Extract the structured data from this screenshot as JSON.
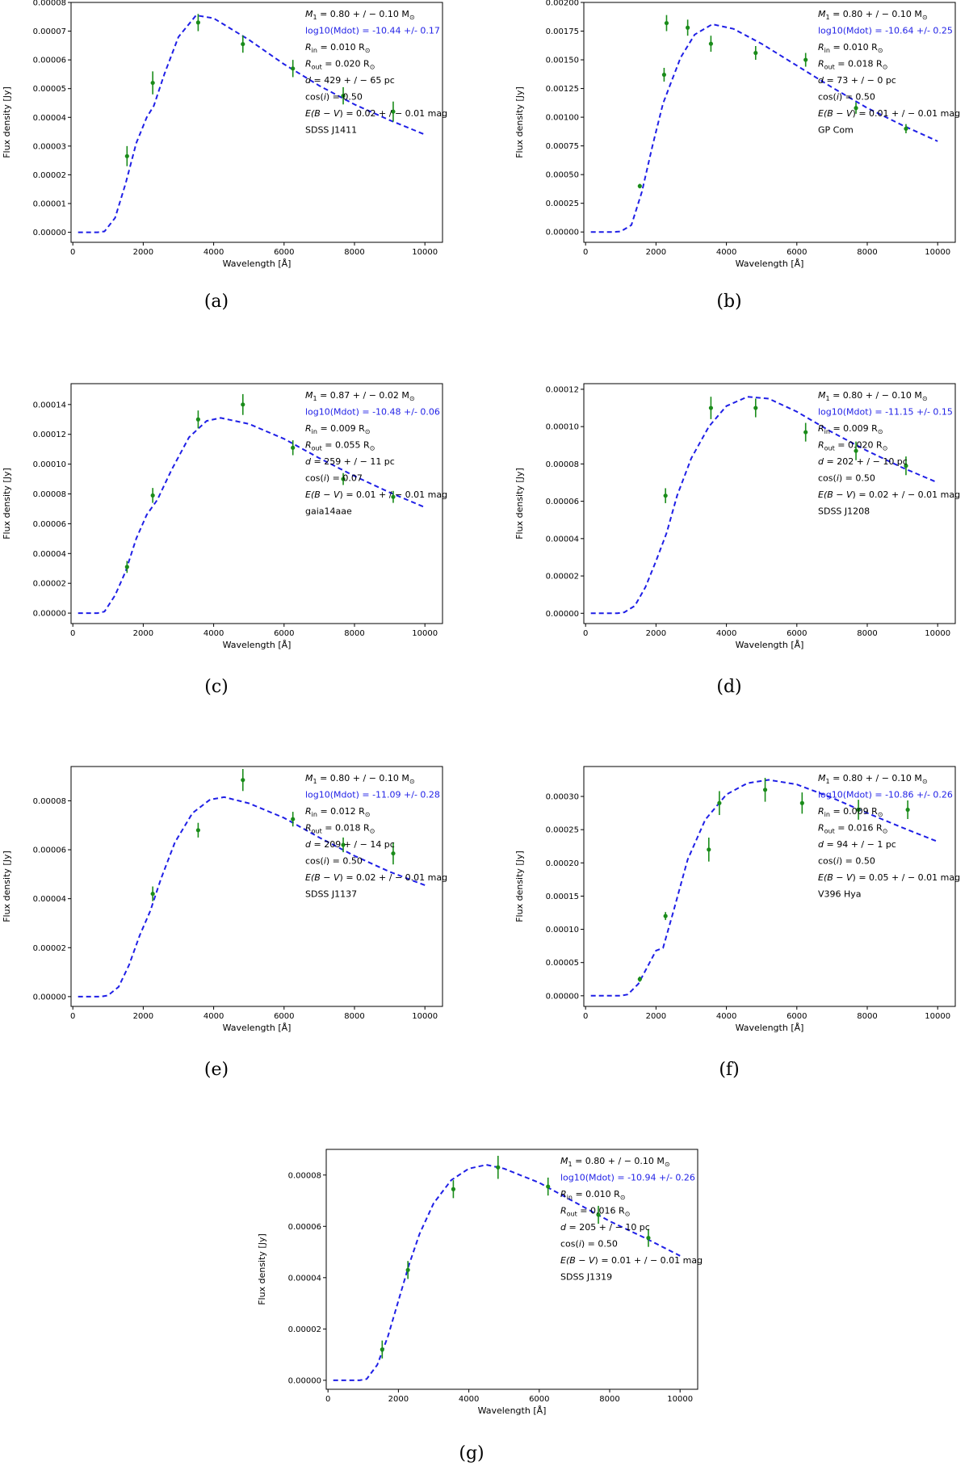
{
  "chart_data": [
    {
      "type": "scatter",
      "caption": "(a)",
      "xlabel": "Wavelength [Å]",
      "ylabel": "Flux density [Jy]",
      "xlim": [
        -50,
        10500
      ],
      "ylim": [
        -3.5e-06,
        8e-05
      ],
      "xticks": [
        0,
        2000,
        4000,
        6000,
        8000,
        10000
      ],
      "xtick_labels": [
        "0",
        "2000",
        "4000",
        "6000",
        "8000",
        "10000"
      ],
      "yticks": [
        0,
        1e-05,
        2e-05,
        3e-05,
        4e-05,
        5e-05,
        6e-05,
        7e-05,
        8e-05
      ],
      "ytick_labels": [
        "0.00000",
        "0.00001",
        "0.00002",
        "0.00003",
        "0.00004",
        "0.00005",
        "0.00006",
        "0.00007",
        "0.00008"
      ],
      "curve": {
        "x": [
          150,
          700,
          900,
          1200,
          1500,
          1800,
          2100,
          2300,
          2600,
          3000,
          3500,
          4000,
          5000,
          6000,
          7000,
          8000,
          9000,
          10000
        ],
        "y": [
          0,
          0,
          3e-07,
          5e-06,
          1.7e-05,
          3.1e-05,
          4e-05,
          4.4e-05,
          5.5e-05,
          6.8e-05,
          7.55e-05,
          7.45e-05,
          6.7e-05,
          5.85e-05,
          5.1e-05,
          4.45e-05,
          3.9e-05,
          3.4e-05
        ]
      },
      "points": [
        {
          "x": 1540,
          "y": 2.65e-05,
          "err": 3.5e-06
        },
        {
          "x": 2270,
          "y": 5.2e-05,
          "err": 4e-06
        },
        {
          "x": 3560,
          "y": 7.3e-05,
          "err": 3e-06
        },
        {
          "x": 4830,
          "y": 6.55e-05,
          "err": 3e-06
        },
        {
          "x": 6250,
          "y": 5.7e-05,
          "err": 3e-06
        },
        {
          "x": 7680,
          "y": 4.75e-05,
          "err": 3e-06
        },
        {
          "x": 9100,
          "y": 4.2e-05,
          "err": 3.5e-06
        }
      ],
      "annotations": {
        "m1": "0.80 + / − 0.10",
        "mdot": "log10(Mdot) = -10.44 +/- 0.17",
        "rin": "0.010",
        "rout": "0.020",
        "d": "429 + / − 65",
        "cosi": "0.50",
        "ebv": "0.02 + / − 0.01",
        "name": "SDSS J1411"
      }
    },
    {
      "type": "scatter",
      "caption": "(b)",
      "xlabel": "Wavelength [Å]",
      "ylabel": "Flux density [Jy]",
      "xlim": [
        -50,
        10500
      ],
      "ylim": [
        -9e-05,
        0.002
      ],
      "xticks": [
        0,
        2000,
        4000,
        6000,
        8000,
        10000
      ],
      "xtick_labels": [
        "0",
        "2000",
        "4000",
        "6000",
        "8000",
        "10000"
      ],
      "yticks": [
        0,
        0.00025,
        0.0005,
        0.00075,
        0.001,
        0.00125,
        0.0015,
        0.00175,
        0.002
      ],
      "ytick_labels": [
        "0.00000",
        "0.00025",
        "0.00050",
        "0.00075",
        "0.00100",
        "0.00125",
        "0.00150",
        "0.00175",
        "0.00200"
      ],
      "curve": {
        "x": [
          150,
          800,
          1000,
          1300,
          1600,
          1900,
          2200,
          2400,
          2700,
          3100,
          3600,
          4200,
          5000,
          6000,
          7000,
          8000,
          9000,
          10000
        ],
        "y": [
          0,
          0,
          5e-06,
          6e-05,
          0.00035,
          0.00075,
          0.00112,
          0.00128,
          0.00152,
          0.00172,
          0.00181,
          0.00177,
          0.00164,
          0.00145,
          0.00126,
          0.00108,
          0.00093,
          0.00079
        ]
      },
      "points": [
        {
          "x": 1540,
          "y": 0.0004,
          "err": 2e-05
        },
        {
          "x": 2230,
          "y": 0.00137,
          "err": 6e-05
        },
        {
          "x": 2300,
          "y": 0.00182,
          "err": 7e-05
        },
        {
          "x": 2900,
          "y": 0.00178,
          "err": 7e-05
        },
        {
          "x": 3560,
          "y": 0.00164,
          "err": 7e-05
        },
        {
          "x": 4830,
          "y": 0.00156,
          "err": 6e-05
        },
        {
          "x": 6250,
          "y": 0.0015,
          "err": 6e-05
        },
        {
          "x": 7680,
          "y": 0.00108,
          "err": 5e-05
        },
        {
          "x": 9100,
          "y": 0.0009,
          "err": 4e-05
        }
      ],
      "annotations": {
        "m1": "0.80 + / − 0.10",
        "mdot": "log10(Mdot) = -10.64 +/- 0.25",
        "rin": "0.010",
        "rout": "0.018",
        "d": "73 + / − 0",
        "cosi": "0.50",
        "ebv": "0.01 + / − 0.01",
        "name": "GP Com"
      }
    },
    {
      "type": "scatter",
      "caption": "(c)",
      "xlabel": "Wavelength [Å]",
      "ylabel": "Flux density [Jy]",
      "xlim": [
        -50,
        10500
      ],
      "ylim": [
        -7e-06,
        0.000154
      ],
      "xticks": [
        0,
        2000,
        4000,
        6000,
        8000,
        10000
      ],
      "xtick_labels": [
        "0",
        "2000",
        "4000",
        "6000",
        "8000",
        "10000"
      ],
      "yticks": [
        0,
        2e-05,
        4e-05,
        6e-05,
        8e-05,
        0.0001,
        0.00012,
        0.00014
      ],
      "ytick_labels": [
        "0.00000",
        "0.00002",
        "0.00004",
        "0.00006",
        "0.00008",
        "0.00010",
        "0.00012",
        "0.00014"
      ],
      "curve": {
        "x": [
          150,
          700,
          900,
          1200,
          1500,
          1800,
          2100,
          2400,
          2800,
          3300,
          3800,
          4200,
          5000,
          6000,
          7000,
          8000,
          9000,
          10000
        ],
        "y": [
          0,
          0,
          1e-06,
          1.2e-05,
          2.8e-05,
          5e-05,
          6.6e-05,
          7.6e-05,
          9.6e-05,
          0.000118,
          0.000129,
          0.000131,
          0.000127,
          0.000117,
          0.000104,
          9.2e-05,
          8.1e-05,
          7.1e-05
        ]
      },
      "points": [
        {
          "x": 1540,
          "y": 3.1e-05,
          "err": 4e-06
        },
        {
          "x": 2270,
          "y": 7.9e-05,
          "err": 5e-06
        },
        {
          "x": 3560,
          "y": 0.00013,
          "err": 6e-06
        },
        {
          "x": 4830,
          "y": 0.00014,
          "err": 7e-06
        },
        {
          "x": 6250,
          "y": 0.000111,
          "err": 5e-06
        },
        {
          "x": 7680,
          "y": 9e-05,
          "err": 4e-06
        },
        {
          "x": 9100,
          "y": 7.8e-05,
          "err": 4e-06
        }
      ],
      "annotations": {
        "m1": "0.87 + / − 0.02",
        "mdot": "log10(Mdot) = -10.48 +/- 0.06",
        "rin": "0.009",
        "rout": "0.055",
        "d": "259 + / − 11",
        "cosi": "0.07",
        "ebv": "0.01 + / − 0.01",
        "name": "gaia14aae"
      }
    },
    {
      "type": "scatter",
      "caption": "(d)",
      "xlabel": "Wavelength [Å]",
      "ylabel": "Flux density [Jy]",
      "xlim": [
        -50,
        10500
      ],
      "ylim": [
        -5.5e-06,
        0.000123
      ],
      "xticks": [
        0,
        2000,
        4000,
        6000,
        8000,
        10000
      ],
      "xtick_labels": [
        "0",
        "2000",
        "4000",
        "6000",
        "8000",
        "10000"
      ],
      "yticks": [
        0,
        2e-05,
        4e-05,
        6e-05,
        8e-05,
        0.0001,
        0.00012
      ],
      "ytick_labels": [
        "0.00000",
        "0.00002",
        "0.00004",
        "0.00006",
        "0.00008",
        "0.00010",
        "0.00012"
      ],
      "curve": {
        "x": [
          150,
          900,
          1100,
          1400,
          1700,
          2000,
          2300,
          2600,
          3000,
          3500,
          4000,
          4600,
          5200,
          6000,
          7000,
          8000,
          9000,
          10000
        ],
        "y": [
          0,
          0,
          5e-07,
          4e-06,
          1.4e-05,
          2.8e-05,
          4.3e-05,
          6.3e-05,
          8.3e-05,
          0.0001,
          0.000111,
          0.000116,
          0.000115,
          0.000108,
          9.7e-05,
          8.7e-05,
          7.8e-05,
          7e-05
        ]
      },
      "points": [
        {
          "x": 2270,
          "y": 6.3e-05,
          "err": 4e-06
        },
        {
          "x": 3560,
          "y": 0.00011,
          "err": 6e-06
        },
        {
          "x": 4830,
          "y": 0.00011,
          "err": 5e-06
        },
        {
          "x": 6250,
          "y": 9.7e-05,
          "err": 5e-06
        },
        {
          "x": 7680,
          "y": 8.7e-05,
          "err": 5e-06
        },
        {
          "x": 9100,
          "y": 7.9e-05,
          "err": 5e-06
        }
      ],
      "annotations": {
        "m1": "0.80 + / − 0.10",
        "mdot": "log10(Mdot) = -11.15 +/- 0.15",
        "rin": "0.009",
        "rout": "0.020",
        "d": "202 + / − 10",
        "cosi": "0.50",
        "ebv": "0.02 + / − 0.01",
        "name": "SDSS J1208"
      }
    },
    {
      "type": "scatter",
      "caption": "(e)",
      "xlabel": "Wavelength [Å]",
      "ylabel": "Flux density [Jy]",
      "xlim": [
        -50,
        10500
      ],
      "ylim": [
        -4e-06,
        9.4e-05
      ],
      "xticks": [
        0,
        2000,
        4000,
        6000,
        8000,
        10000
      ],
      "xtick_labels": [
        "0",
        "2000",
        "4000",
        "6000",
        "8000",
        "10000"
      ],
      "yticks": [
        0,
        2e-05,
        4e-05,
        6e-05,
        8e-05
      ],
      "ytick_labels": [
        "0.00000",
        "0.00002",
        "0.00004",
        "0.00006",
        "0.00008"
      ],
      "curve": {
        "x": [
          150,
          800,
          1000,
          1300,
          1600,
          1900,
          2200,
          2500,
          2900,
          3400,
          3900,
          4300,
          5000,
          6000,
          7000,
          8000,
          9000,
          10000
        ],
        "y": [
          0,
          0,
          5e-07,
          4e-06,
          1.3e-05,
          2.5e-05,
          3.5e-05,
          4.8e-05,
          6.3e-05,
          7.5e-05,
          8.05e-05,
          8.15e-05,
          7.9e-05,
          7.3e-05,
          6.5e-05,
          5.75e-05,
          5.1e-05,
          4.55e-05
        ]
      },
      "points": [
        {
          "x": 2270,
          "y": 4.2e-05,
          "err": 3e-06
        },
        {
          "x": 3560,
          "y": 6.8e-05,
          "err": 3e-06
        },
        {
          "x": 4830,
          "y": 8.85e-05,
          "err": 4.5e-06
        },
        {
          "x": 6250,
          "y": 7.25e-05,
          "err": 3e-06
        },
        {
          "x": 7680,
          "y": 6.2e-05,
          "err": 3e-06
        },
        {
          "x": 9100,
          "y": 5.85e-05,
          "err": 4.5e-06
        }
      ],
      "annotations": {
        "m1": "0.80 + / − 0.10",
        "mdot": "log10(Mdot) = -11.09 +/- 0.28",
        "rin": "0.012",
        "rout": "0.018",
        "d": "209 + / − 14",
        "cosi": "0.50",
        "ebv": "0.02 + / − 0.01",
        "name": "SDSS J1137"
      }
    },
    {
      "type": "scatter",
      "caption": "(f)",
      "xlabel": "Wavelength [Å]",
      "ylabel": "Flux density [Jy]",
      "xlim": [
        -50,
        10500
      ],
      "ylim": [
        -1.6e-05,
        0.000345
      ],
      "xticks": [
        0,
        2000,
        4000,
        6000,
        8000,
        10000
      ],
      "xtick_labels": [
        "0",
        "2000",
        "4000",
        "6000",
        "8000",
        "10000"
      ],
      "yticks": [
        0,
        5e-05,
        0.0001,
        0.00015,
        0.0002,
        0.00025,
        0.0003
      ],
      "ytick_labels": [
        "0.00000",
        "0.00005",
        "0.00010",
        "0.00015",
        "0.00020",
        "0.00025",
        "0.00030"
      ],
      "curve": {
        "x": [
          150,
          1000,
          1200,
          1500,
          1800,
          2000,
          2200,
          2500,
          2900,
          3400,
          4000,
          4600,
          5200,
          6000,
          7000,
          8000,
          9000,
          10000
        ],
        "y": [
          0,
          0,
          2e-06,
          1.8e-05,
          4.8e-05,
          6.8e-05,
          7.2e-05,
          0.000128,
          0.000205,
          0.000265,
          0.000303,
          0.00032,
          0.000325,
          0.000318,
          0.000298,
          0.000275,
          0.000253,
          0.000232
        ]
      },
      "points": [
        {
          "x": 1540,
          "y": 2.5e-05,
          "err": 4e-06
        },
        {
          "x": 2270,
          "y": 0.00012,
          "err": 6e-06
        },
        {
          "x": 3500,
          "y": 0.00022,
          "err": 1.8e-05
        },
        {
          "x": 3800,
          "y": 0.00029,
          "err": 1.8e-05
        },
        {
          "x": 5100,
          "y": 0.00031,
          "err": 1.8e-05
        },
        {
          "x": 6150,
          "y": 0.00029,
          "err": 1.6e-05
        },
        {
          "x": 7750,
          "y": 0.00028,
          "err": 1.5e-05
        },
        {
          "x": 9150,
          "y": 0.00028,
          "err": 1.4e-05
        }
      ],
      "annotations": {
        "m1": "0.80 + / − 0.10",
        "mdot": "log10(Mdot) = -10.86 +/- 0.26",
        "rin": "0.009",
        "rout": "0.016",
        "d": "94 + / − 1",
        "cosi": "0.50",
        "ebv": "0.05 + / − 0.01",
        "name": "V396 Hya"
      }
    },
    {
      "type": "scatter",
      "caption": "(g)",
      "xlabel": "Wavelength [Å]",
      "ylabel": "Flux density [Jy]",
      "xlim": [
        -50,
        10500
      ],
      "ylim": [
        -3.5e-06,
        9e-05
      ],
      "xticks": [
        0,
        2000,
        4000,
        6000,
        8000,
        10000
      ],
      "xtick_labels": [
        "0",
        "2000",
        "4000",
        "6000",
        "8000",
        "10000"
      ],
      "yticks": [
        0,
        2e-05,
        4e-05,
        6e-05,
        8e-05
      ],
      "ytick_labels": [
        "0.00000",
        "0.00002",
        "0.00004",
        "0.00006",
        "0.00008"
      ],
      "curve": {
        "x": [
          150,
          900,
          1100,
          1400,
          1700,
          2000,
          2300,
          2600,
          3000,
          3500,
          4000,
          4500,
          5000,
          6000,
          7000,
          8000,
          9000,
          10000
        ],
        "y": [
          0,
          0,
          5e-07,
          6e-06,
          1.7e-05,
          3.1e-05,
          4.5e-05,
          5.7e-05,
          6.9e-05,
          7.8e-05,
          8.25e-05,
          8.4e-05,
          8.25e-05,
          7.7e-05,
          6.95e-05,
          6.2e-05,
          5.55e-05,
          4.85e-05
        ]
      },
      "points": [
        {
          "x": 1540,
          "y": 1.2e-05,
          "err": 3.5e-06
        },
        {
          "x": 2270,
          "y": 4.3e-05,
          "err": 3.5e-06
        },
        {
          "x": 3560,
          "y": 7.45e-05,
          "err": 3.5e-06
        },
        {
          "x": 4830,
          "y": 8.3e-05,
          "err": 4.5e-06
        },
        {
          "x": 6250,
          "y": 7.55e-05,
          "err": 3.5e-06
        },
        {
          "x": 7680,
          "y": 6.45e-05,
          "err": 3.5e-06
        },
        {
          "x": 9100,
          "y": 5.55e-05,
          "err": 3.5e-06
        }
      ],
      "annotations": {
        "m1": "0.80 + / − 0.10",
        "mdot": "log10(Mdot) = -10.94 +/- 0.26",
        "rin": "0.010",
        "rout": "0.016",
        "d": "205 + / − 10",
        "cosi": "0.50",
        "ebv": "0.01 + / − 0.01",
        "name": "SDSS J1319"
      }
    }
  ],
  "colors": {
    "model_curve": "#1f1fe6",
    "data_points": "#1a8c1a",
    "mdot_text": "#1f1fe6",
    "axes": "#000000"
  },
  "units": {
    "solar_mass": "M",
    "solar_radius": "R",
    "sun_symbol": "⊙",
    "parsec": "pc",
    "mag": "mag"
  },
  "symbols": {
    "m1": "M",
    "m1_sub": "1",
    "r": "R",
    "rin_sub": "in",
    "rout_sub": "out",
    "d": "d",
    "cos": "cos(",
    "i": "i",
    "cos_close": ")",
    "e": "E(",
    "b_minus_v": "B − V",
    "e_close": ")",
    "eq": " = "
  }
}
